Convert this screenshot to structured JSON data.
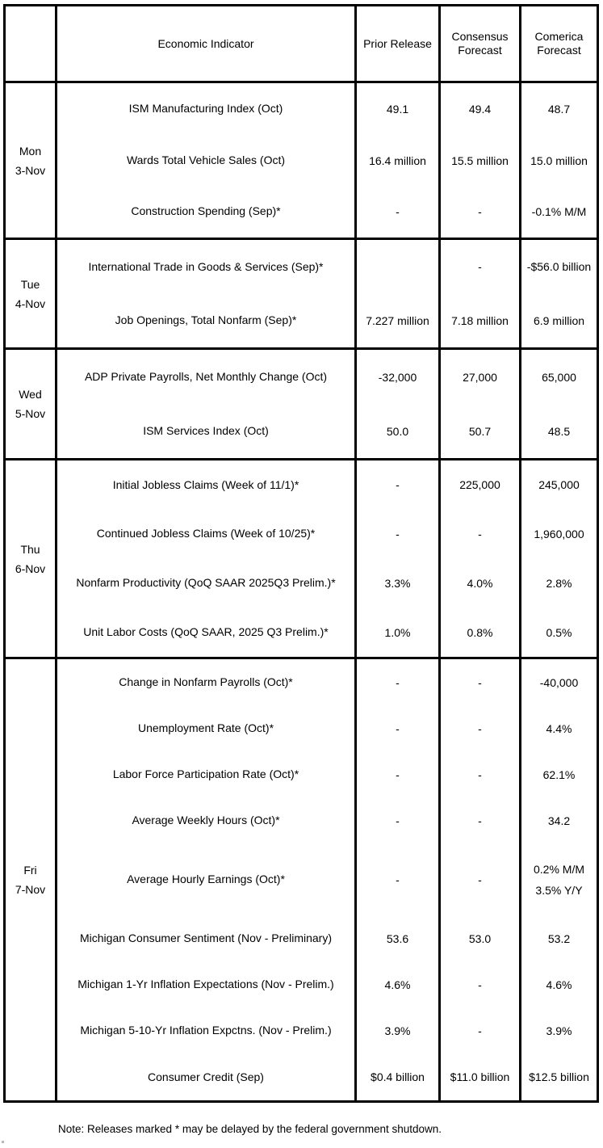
{
  "header": {
    "indicator": "Economic Indicator",
    "prior": "Prior Release",
    "consensus": "Consensus Forecast",
    "comerica": "Comerica Forecast"
  },
  "sections": [
    {
      "day": "Mon",
      "date": "3-Nov",
      "rows": [
        {
          "indicator": "ISM Manufacturing Index (Oct)",
          "prior": "49.1",
          "consensus": "49.4",
          "comerica": "48.7"
        },
        {
          "indicator": "Wards Total Vehicle Sales (Oct)",
          "prior": "16.4 million",
          "consensus": "15.5 million",
          "comerica": "15.0 million"
        },
        {
          "indicator": "Construction Spending (Sep)*",
          "prior": "-",
          "consensus": "-",
          "comerica": "-0.1% M/M"
        }
      ]
    },
    {
      "day": "Tue",
      "date": "4-Nov",
      "rows": [
        {
          "indicator": "International Trade in Goods & Services (Sep)*",
          "prior": "",
          "consensus": "-",
          "comerica": "-$56.0 billion"
        },
        {
          "indicator": "Job Openings, Total Nonfarm (Sep)*",
          "prior": "7.227 million",
          "consensus": "7.18 million",
          "comerica": "6.9 million"
        }
      ]
    },
    {
      "day": "Wed",
      "date": "5-Nov",
      "rows": [
        {
          "indicator": "ADP Private Payrolls, Net Monthly Change (Oct)",
          "prior": "-32,000",
          "consensus": "27,000",
          "comerica": "65,000"
        },
        {
          "indicator": "ISM Services Index (Oct)",
          "prior": "50.0",
          "consensus": "50.7",
          "comerica": "48.5"
        }
      ]
    },
    {
      "day": "Thu",
      "date": "6-Nov",
      "rows": [
        {
          "indicator": "Initial Jobless Claims (Week of 11/1)*",
          "prior": "-",
          "consensus": "225,000",
          "comerica": "245,000"
        },
        {
          "indicator": "Continued Jobless Claims (Week of 10/25)*",
          "prior": "-",
          "consensus": "-",
          "comerica": "1,960,000"
        },
        {
          "indicator": "Nonfarm Productivity (QoQ SAAR 2025Q3 Prelim.)*",
          "prior": "3.3%",
          "consensus": "4.0%",
          "comerica": "2.8%"
        },
        {
          "indicator": "Unit Labor Costs (QoQ SAAR, 2025 Q3 Prelim.)*",
          "prior": "1.0%",
          "consensus": "0.8%",
          "comerica": "0.5%"
        }
      ]
    },
    {
      "day": "Fri",
      "date": "7-Nov",
      "rows": [
        {
          "indicator": "Change in Nonfarm Payrolls (Oct)*",
          "prior": "-",
          "consensus": "-",
          "comerica": "-40,000"
        },
        {
          "indicator": "Unemployment Rate (Oct)*",
          "prior": "-",
          "consensus": "-",
          "comerica": "4.4%"
        },
        {
          "indicator": "Labor Force Participation Rate (Oct)*",
          "prior": "-",
          "consensus": "-",
          "comerica": "62.1%"
        },
        {
          "indicator": "Average Weekly Hours (Oct)*",
          "prior": "-",
          "consensus": "-",
          "comerica": "34.2"
        },
        {
          "indicator": "Average Hourly Earnings (Oct)*",
          "prior": "-",
          "consensus": "-",
          "comerica": "0.2% M/M\n3.5% Y/Y"
        },
        {
          "indicator": "Michigan Consumer Sentiment (Nov - Preliminary)",
          "prior": "53.6",
          "consensus": "53.0",
          "comerica": "53.2"
        },
        {
          "indicator": "Michigan 1-Yr Inflation Expectations (Nov - Prelim.)",
          "prior": "4.6%",
          "consensus": "-",
          "comerica": "4.6%"
        },
        {
          "indicator": "Michigan 5-10-Yr Inflation Expctns. (Nov - Prelim.)",
          "prior": "3.9%",
          "consensus": "-",
          "comerica": "3.9%"
        },
        {
          "indicator": "Consumer Credit (Sep)",
          "prior": "$0.4 billion",
          "consensus": "$11.0 billion",
          "comerica": "$12.5 billion"
        }
      ]
    }
  ],
  "note": "Note: Releases marked * may be delayed by the federal government shutdown.",
  "colors": {
    "border": "#000000",
    "text": "#000000",
    "background": "#ffffff"
  }
}
